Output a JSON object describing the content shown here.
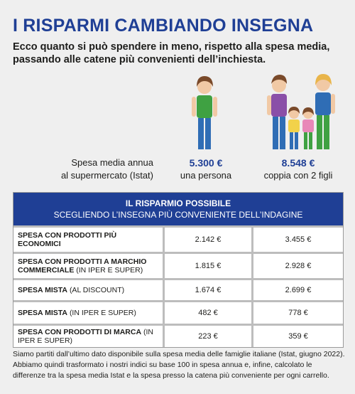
{
  "header": {
    "title": "I RISPARMI CAMBIANDO INSEGNA",
    "subtitle": "Ecco quanto si può spendere in meno, rispetto alla spesa media, passando alle catene più convenienti dell’inchiesta."
  },
  "summary": {
    "label": [
      "Spesa media annua",
      "al supermercato (Istat)"
    ],
    "columns": [
      {
        "amount": "5.300 €",
        "label": "una persona"
      },
      {
        "amount": "8.548 €",
        "label": "coppia con 2 figli"
      }
    ]
  },
  "table": {
    "header": [
      "IL RISPARMIO POSSIBILE",
      "SCEGLIENDO L’INSEGNA PIÙ CONVENIENTE DELL’INDAGINE"
    ],
    "rows": [
      {
        "label": "SPESA CON PRODOTTI PIÙ ECONOMICI",
        "values": [
          "2.142 €",
          "3.455 €"
        ]
      },
      {
        "label": "SPESA CON  PRODOTTI A MARCHIO COMMERCIALE",
        "note": "(IN IPER E SUPER)",
        "values": [
          "1.815 €",
          "2.928 €"
        ]
      },
      {
        "label": "SPESA MISTA",
        "note": "(AL DISCOUNT)",
        "values": [
          "1.674 €",
          "2.699 €"
        ]
      },
      {
        "label": "SPESA MISTA",
        "note": "(IN IPER E SUPER)",
        "values": [
          "482 €",
          "778 €"
        ]
      },
      {
        "label": "SPESA CON PRODOTTI DI MARCA",
        "note": "(IN IPER E SUPER)",
        "values": [
          "223 €",
          "359 €"
        ]
      }
    ]
  },
  "footnote": "Siamo partiti dall’ultimo dato disponibile sulla spesa media delle famiglie italiane (Istat, giugno 2022). Abbiamo quindi trasformato i nostri indici su base 100 in spesa annua e, infine, calcolato le differenze tra la spesa media Istat e la spesa presso la catena più conveniente per ogni carrello."
}
